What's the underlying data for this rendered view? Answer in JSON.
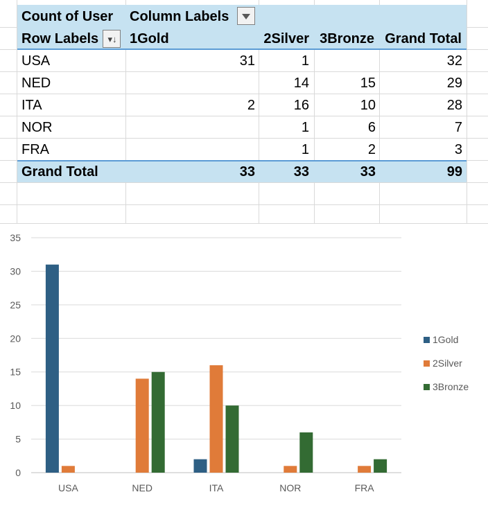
{
  "pivot": {
    "value_field_label": "Count of User",
    "column_labels_label": "Column Labels",
    "row_labels_label": "Row Labels",
    "columns": [
      "1Gold",
      "2Silver",
      "3Bronze",
      "Grand Total"
    ],
    "rows": [
      {
        "label": "USA",
        "values": [
          "31",
          "1",
          "",
          "32"
        ]
      },
      {
        "label": "NED",
        "values": [
          "",
          "14",
          "15",
          "29"
        ]
      },
      {
        "label": "ITA",
        "values": [
          "2",
          "16",
          "10",
          "28"
        ]
      },
      {
        "label": "NOR",
        "values": [
          "",
          "1",
          "6",
          "7"
        ]
      },
      {
        "label": "FRA",
        "values": [
          "",
          "1",
          "2",
          "3"
        ]
      }
    ],
    "grand_total": {
      "label": "Grand Total",
      "values": [
        "33",
        "33",
        "33",
        "99"
      ]
    }
  },
  "colors": {
    "header_band": "#c6e2f1",
    "band_rule": "#5b9bd5",
    "gold": "#2e5f84",
    "silver": "#e07b39",
    "bronze": "#336b33"
  },
  "chart_data": {
    "type": "bar",
    "title": "",
    "xlabel": "",
    "ylabel": "",
    "categories": [
      "USA",
      "NED",
      "ITA",
      "NOR",
      "FRA"
    ],
    "series": [
      {
        "name": "1Gold",
        "values": [
          31,
          0,
          2,
          0,
          0
        ]
      },
      {
        "name": "2Silver",
        "values": [
          1,
          14,
          16,
          1,
          1
        ]
      },
      {
        "name": "3Bronze",
        "values": [
          0,
          15,
          10,
          6,
          2
        ]
      }
    ],
    "ylim": [
      0,
      35
    ],
    "yticks": [
      0,
      5,
      10,
      15,
      20,
      25,
      30,
      35
    ],
    "grid": true,
    "legend": "right"
  }
}
